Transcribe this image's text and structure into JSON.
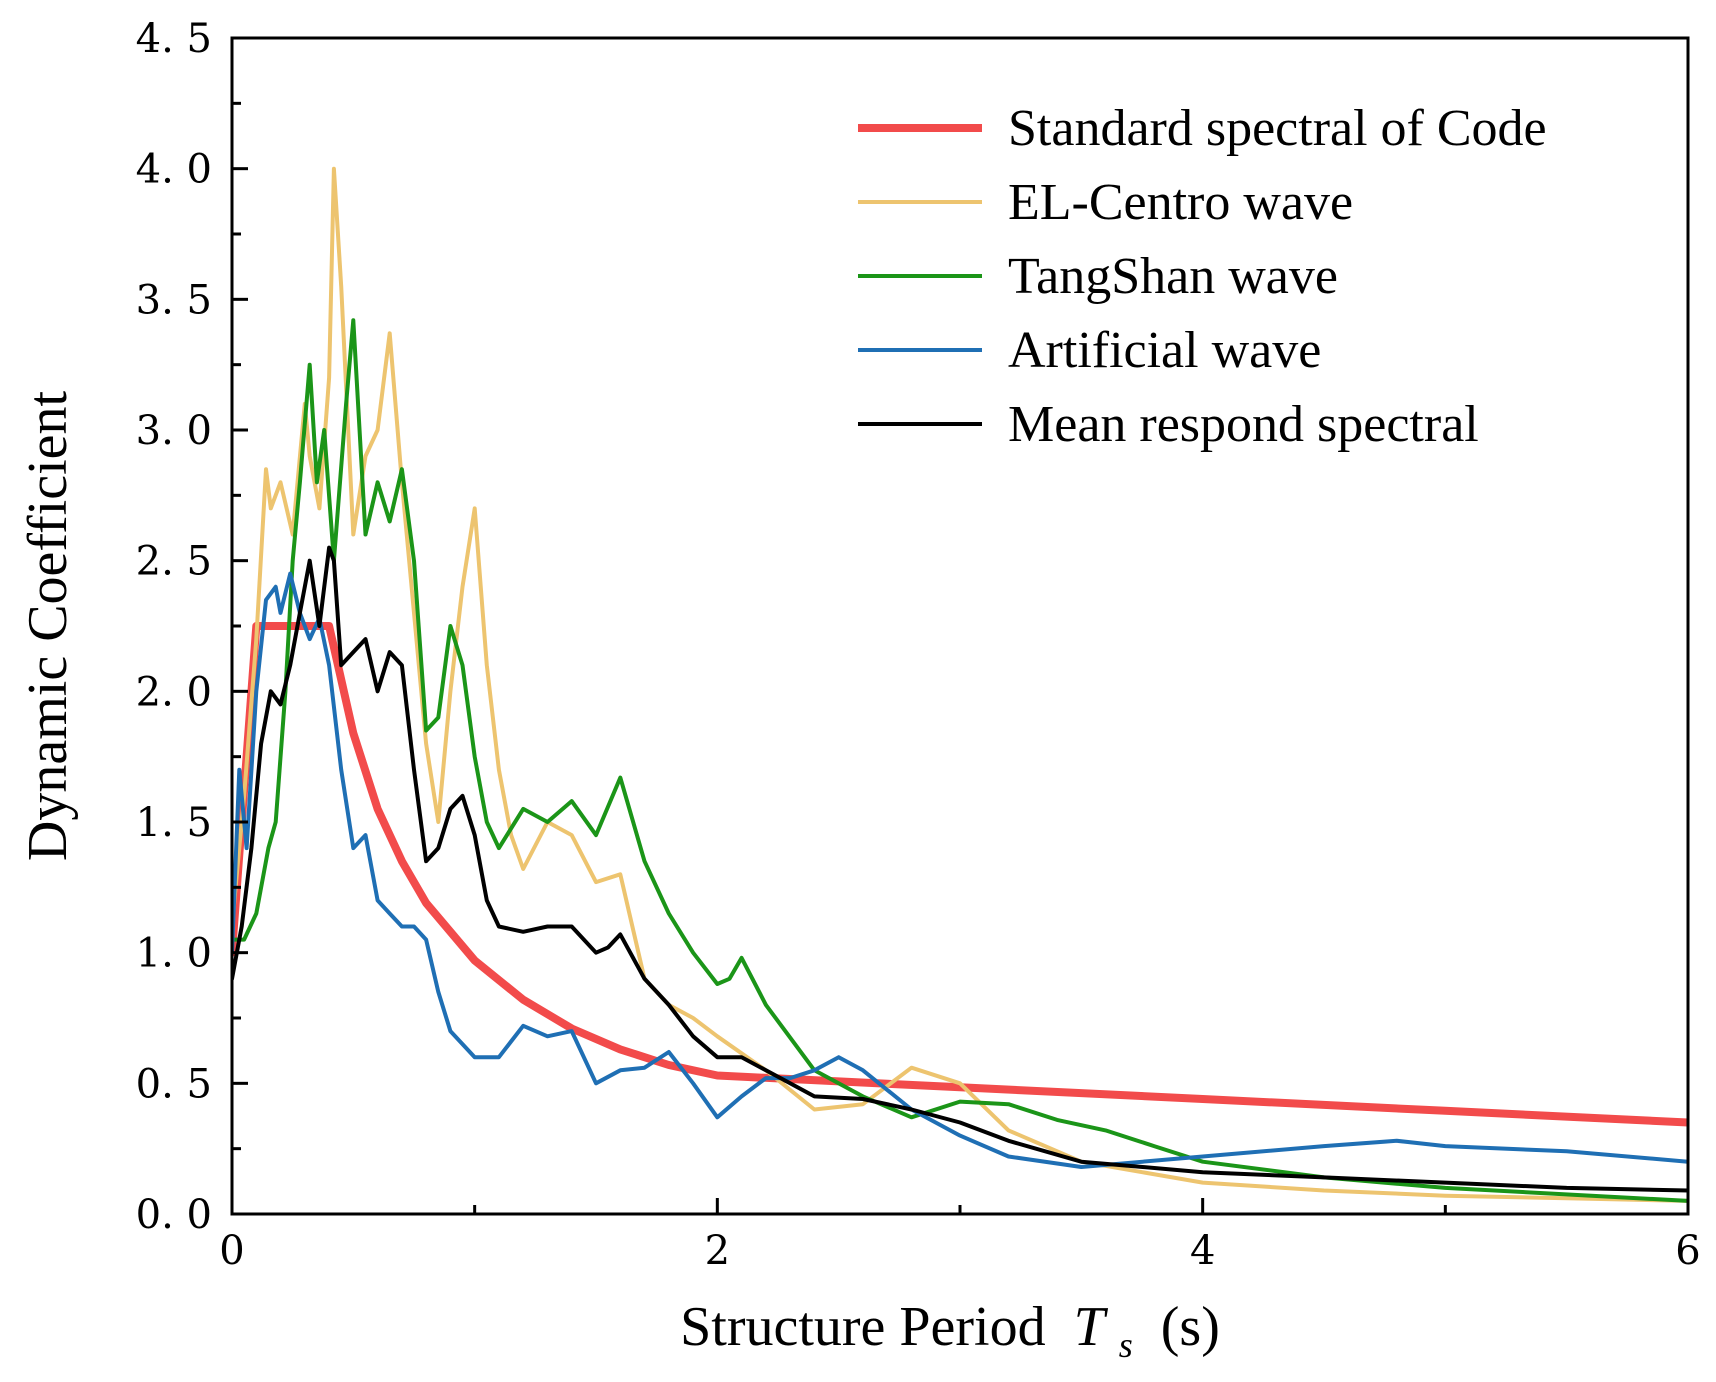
{
  "chart_data": {
    "type": "line",
    "title": "",
    "xlabel": "Structure Period",
    "xlabel_symbol": "T",
    "xlabel_subscript": "s",
    "xlabel_unit": "(s)",
    "ylabel": "Dynamic Coefficient",
    "xlim": [
      0,
      6
    ],
    "ylim": [
      0,
      4.5
    ],
    "x_ticks": [
      0,
      2,
      4,
      6
    ],
    "x_tick_labels": [
      "0",
      "2",
      "4",
      "6"
    ],
    "y_ticks": [
      0,
      0.5,
      1.0,
      1.5,
      2.0,
      2.5,
      3.0,
      3.5,
      4.0,
      4.5
    ],
    "y_tick_labels": [
      "0. 0",
      "0. 5",
      "1. 0",
      "1. 5",
      "2. 0",
      "2. 5",
      "3. 0",
      "3. 5",
      "4. 0",
      "4. 5"
    ],
    "grid": false,
    "legend_position": "top-right",
    "series": [
      {
        "name": "Standard spectral of Code",
        "color": "#f24b4b",
        "width": 8,
        "x": [
          0,
          0.1,
          0.4,
          0.5,
          0.6,
          0.7,
          0.8,
          1.0,
          1.2,
          1.4,
          1.6,
          1.8,
          2.0,
          3.0,
          4.0,
          5.0,
          6.0
        ],
        "y": [
          1.0,
          2.25,
          2.25,
          1.84,
          1.55,
          1.35,
          1.19,
          0.97,
          0.82,
          0.71,
          0.63,
          0.57,
          0.53,
          0.485,
          0.44,
          0.395,
          0.35
        ]
      },
      {
        "name": "EL-Centro wave",
        "color": "#edc46f",
        "width": 4,
        "x": [
          0,
          0.05,
          0.1,
          0.14,
          0.16,
          0.2,
          0.25,
          0.3,
          0.32,
          0.36,
          0.4,
          0.42,
          0.45,
          0.5,
          0.55,
          0.6,
          0.65,
          0.7,
          0.8,
          0.85,
          0.9,
          0.95,
          1.0,
          1.05,
          1.1,
          1.15,
          1.2,
          1.3,
          1.4,
          1.5,
          1.6,
          1.7,
          1.8,
          1.9,
          2.0,
          2.2,
          2.4,
          2.6,
          2.8,
          3.0,
          3.2,
          3.5,
          4.0,
          4.5,
          5.0,
          5.5,
          6.0
        ],
        "y": [
          1.1,
          1.6,
          2.2,
          2.85,
          2.7,
          2.8,
          2.6,
          3.1,
          2.9,
          2.7,
          3.2,
          4.0,
          3.55,
          2.6,
          2.9,
          3.0,
          3.37,
          2.8,
          1.8,
          1.5,
          2.0,
          2.4,
          2.7,
          2.1,
          1.7,
          1.45,
          1.32,
          1.5,
          1.45,
          1.27,
          1.3,
          0.9,
          0.8,
          0.75,
          0.68,
          0.55,
          0.4,
          0.42,
          0.56,
          0.5,
          0.32,
          0.2,
          0.12,
          0.09,
          0.07,
          0.06,
          0.05
        ]
      },
      {
        "name": "TangShan wave",
        "color": "#1b9518",
        "width": 4,
        "x": [
          0,
          0.05,
          0.1,
          0.15,
          0.18,
          0.22,
          0.25,
          0.28,
          0.32,
          0.35,
          0.38,
          0.42,
          0.47,
          0.5,
          0.55,
          0.6,
          0.65,
          0.7,
          0.75,
          0.8,
          0.85,
          0.9,
          0.95,
          1.0,
          1.05,
          1.1,
          1.2,
          1.3,
          1.4,
          1.5,
          1.6,
          1.7,
          1.8,
          1.9,
          2.0,
          2.05,
          2.1,
          2.2,
          2.4,
          2.6,
          2.8,
          3.0,
          3.2,
          3.4,
          3.6,
          3.8,
          4.0,
          4.5,
          5.0,
          6.0
        ],
        "y": [
          1.05,
          1.05,
          1.15,
          1.4,
          1.5,
          2.0,
          2.5,
          2.8,
          3.25,
          2.8,
          3.0,
          2.5,
          3.1,
          3.42,
          2.6,
          2.8,
          2.65,
          2.85,
          2.5,
          1.85,
          1.9,
          2.25,
          2.1,
          1.75,
          1.5,
          1.4,
          1.55,
          1.5,
          1.58,
          1.45,
          1.67,
          1.35,
          1.15,
          1.0,
          0.88,
          0.9,
          0.98,
          0.8,
          0.55,
          0.45,
          0.37,
          0.43,
          0.42,
          0.36,
          0.32,
          0.26,
          0.2,
          0.14,
          0.1,
          0.05
        ]
      },
      {
        "name": "Artificial wave",
        "color": "#1f6fb4",
        "width": 4,
        "x": [
          0,
          0.03,
          0.06,
          0.1,
          0.14,
          0.18,
          0.2,
          0.24,
          0.28,
          0.32,
          0.36,
          0.4,
          0.45,
          0.5,
          0.55,
          0.6,
          0.65,
          0.7,
          0.75,
          0.8,
          0.85,
          0.9,
          0.95,
          1.0,
          1.1,
          1.2,
          1.3,
          1.4,
          1.5,
          1.6,
          1.7,
          1.8,
          1.9,
          2.0,
          2.1,
          2.2,
          2.3,
          2.4,
          2.5,
          2.6,
          2.8,
          3.0,
          3.2,
          3.5,
          4.0,
          4.5,
          4.8,
          5.0,
          5.5,
          6.0
        ],
        "y": [
          1.0,
          1.7,
          1.4,
          2.0,
          2.35,
          2.4,
          2.3,
          2.45,
          2.3,
          2.2,
          2.28,
          2.1,
          1.7,
          1.4,
          1.45,
          1.2,
          1.15,
          1.1,
          1.1,
          1.05,
          0.85,
          0.7,
          0.65,
          0.6,
          0.6,
          0.72,
          0.68,
          0.7,
          0.5,
          0.55,
          0.56,
          0.62,
          0.5,
          0.37,
          0.45,
          0.52,
          0.52,
          0.55,
          0.6,
          0.55,
          0.4,
          0.3,
          0.22,
          0.18,
          0.22,
          0.26,
          0.28,
          0.26,
          0.24,
          0.2
        ]
      },
      {
        "name": "Mean respond spectral",
        "color": "#000000",
        "width": 4,
        "x": [
          0,
          0.04,
          0.08,
          0.12,
          0.16,
          0.2,
          0.24,
          0.28,
          0.32,
          0.36,
          0.4,
          0.42,
          0.45,
          0.5,
          0.55,
          0.6,
          0.65,
          0.7,
          0.75,
          0.8,
          0.85,
          0.9,
          0.95,
          1.0,
          1.05,
          1.1,
          1.2,
          1.3,
          1.4,
          1.5,
          1.55,
          1.6,
          1.7,
          1.8,
          1.9,
          2.0,
          2.1,
          2.2,
          2.3,
          2.4,
          2.6,
          2.8,
          3.0,
          3.2,
          3.5,
          4.0,
          4.5,
          5.0,
          5.5,
          6.0
        ],
        "y": [
          0.9,
          1.1,
          1.4,
          1.8,
          2.0,
          1.95,
          2.1,
          2.3,
          2.5,
          2.25,
          2.55,
          2.5,
          2.1,
          2.15,
          2.2,
          2.0,
          2.15,
          2.1,
          1.7,
          1.35,
          1.4,
          1.55,
          1.6,
          1.45,
          1.2,
          1.1,
          1.08,
          1.1,
          1.1,
          1.0,
          1.02,
          1.07,
          0.9,
          0.8,
          0.68,
          0.6,
          0.6,
          0.55,
          0.5,
          0.45,
          0.44,
          0.4,
          0.35,
          0.28,
          0.2,
          0.16,
          0.14,
          0.12,
          0.1,
          0.09
        ]
      }
    ]
  }
}
